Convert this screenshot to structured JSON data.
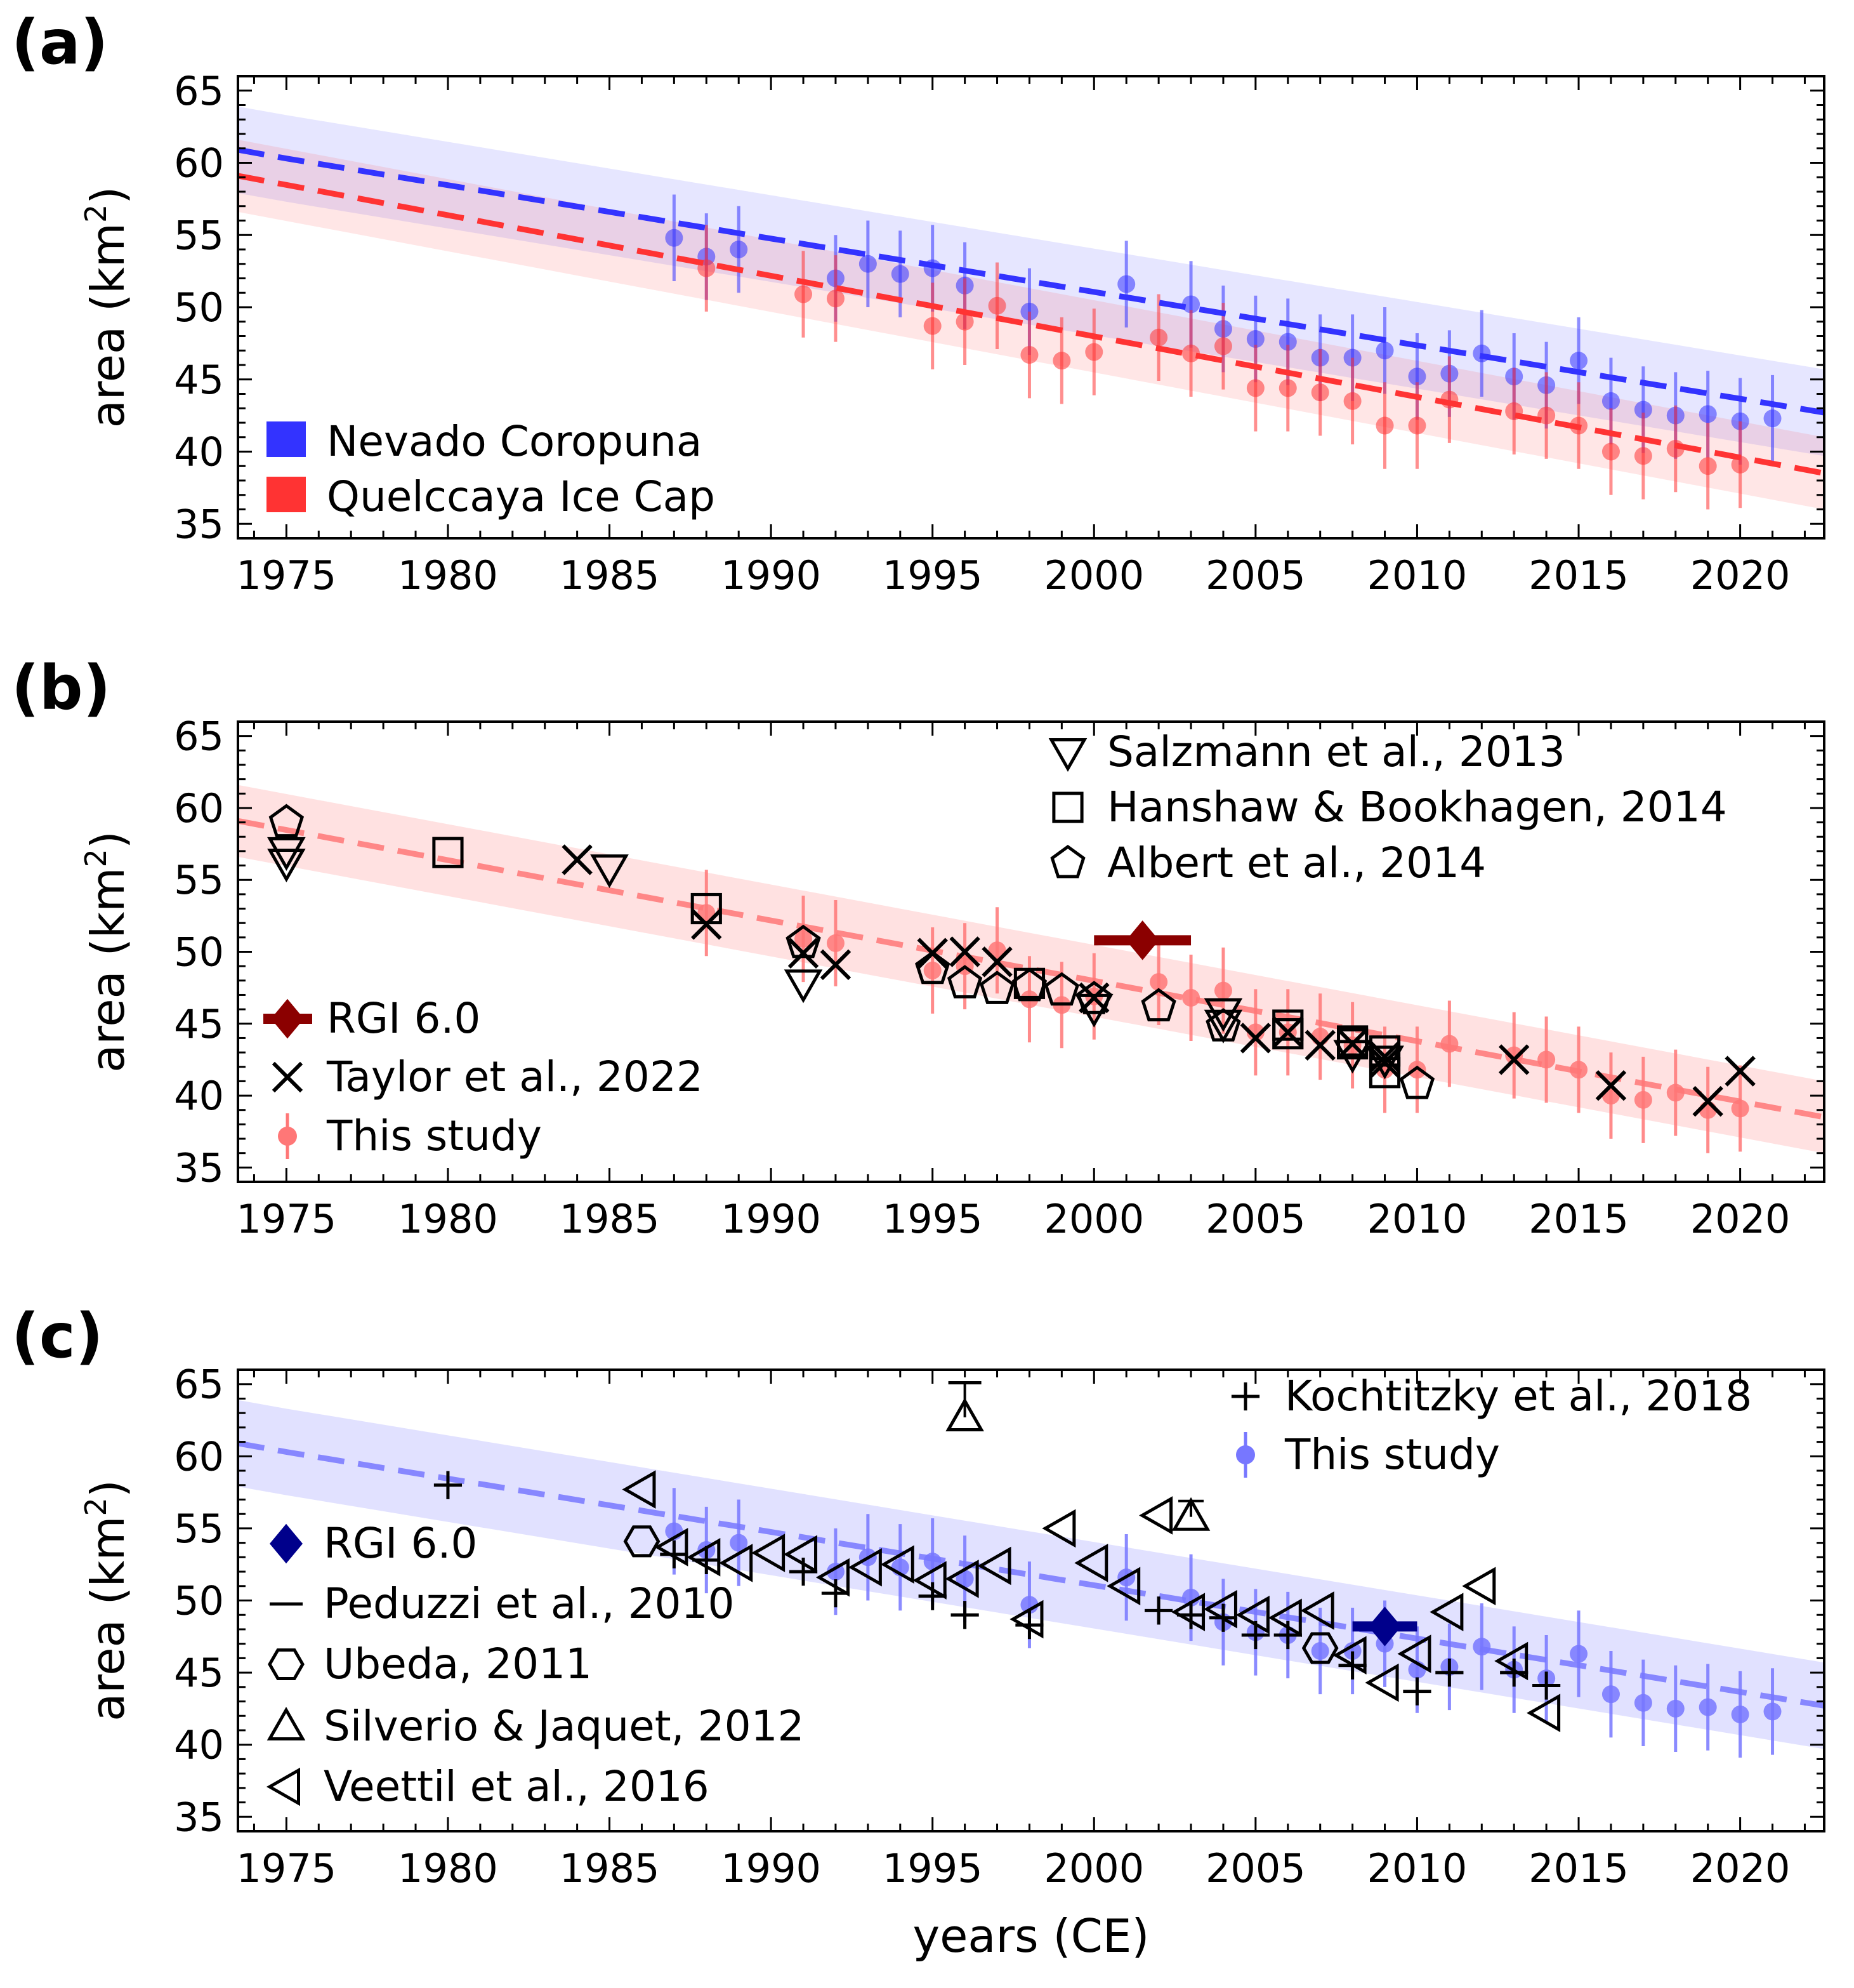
{
  "chart_data": [
    {
      "type": "scatter",
      "panel_label": "(a)",
      "ylabel": "area (km",
      "ylabel_sup": "2",
      "ylabel_close": ")",
      "xlim": [
        1973.5,
        2022.6
      ],
      "ylim": [
        34,
        66
      ],
      "xticks": [
        "1975",
        "1980",
        "1985",
        "1990",
        "1995",
        "2000",
        "2005",
        "2010",
        "2015",
        "2020"
      ],
      "yticks": [
        "35",
        "40",
        "45",
        "50",
        "55",
        "60",
        "65"
      ],
      "colors": {
        "blue": "#3333ff",
        "red": "#ff3333"
      },
      "legend": [
        "Nevado Coropuna",
        "Quelccaya Ice Cap"
      ],
      "series": [
        {
          "name": "Nevado Coropuna",
          "trend": {
            "x": [
              1973.5,
              1975,
              2022.6
            ],
            "y": [
              60.9,
              60.3,
              42.7
            ]
          },
          "band_halfwidth": 3,
          "x": [
            1987,
            1988,
            1989,
            1992,
            1993,
            1994,
            1995,
            1996,
            1998,
            2001,
            2003,
            2004,
            2005,
            2006,
            2007,
            2008,
            2009,
            2010,
            2011,
            2012,
            2013,
            2014,
            2015,
            2016,
            2017,
            2018,
            2019,
            2020,
            2021
          ],
          "y": [
            54.8,
            53.5,
            54,
            52,
            53,
            52.3,
            52.7,
            51.5,
            49.7,
            51.6,
            50.2,
            48.5,
            47.8,
            47.6,
            46.5,
            46.5,
            47,
            45.2,
            45.4,
            46.8,
            45.2,
            44.6,
            46.3,
            43.5,
            42.9,
            42.5,
            42.6,
            42.1,
            42.3
          ],
          "err": 3
        },
        {
          "name": "Quelccaya Ice Cap",
          "trend": {
            "x": [
              1973.5,
              2022.6
            ],
            "y": [
              59.1,
              38.5
            ]
          },
          "band_halfwidth": 2.5,
          "x": [
            1988,
            1991,
            1992,
            1995,
            1996,
            1997,
            1998,
            1999,
            2000,
            2002,
            2003,
            2004,
            2005,
            2006,
            2007,
            2008,
            2009,
            2010,
            2011,
            2013,
            2014,
            2015,
            2016,
            2017,
            2018,
            2019,
            2020
          ],
          "y": [
            52.7,
            50.9,
            50.6,
            48.7,
            49,
            50.1,
            46.7,
            46.3,
            46.9,
            47.9,
            46.8,
            47.3,
            44.4,
            44.4,
            44.1,
            43.5,
            41.8,
            41.8,
            43.6,
            42.8,
            42.5,
            41.8,
            40,
            39.7,
            40.2,
            39,
            39.1
          ],
          "err": 3
        }
      ]
    },
    {
      "type": "scatter",
      "panel_label": "(b)",
      "ylabel": "area (km",
      "ylabel_sup": "2",
      "ylabel_close": ")",
      "xlim": [
        1973.5,
        2022.6
      ],
      "ylim": [
        34,
        66
      ],
      "xticks": [
        "1975",
        "1980",
        "1985",
        "1990",
        "1995",
        "2000",
        "2005",
        "2010",
        "2015",
        "2020"
      ],
      "yticks": [
        "35",
        "40",
        "45",
        "50",
        "55",
        "60",
        "65"
      ],
      "colors": {
        "study": "#ff7777",
        "rgi": "#8b0000"
      },
      "legend_right": [
        "Salzmann et al., 2013",
        "Hanshaw & Bookhagen, 2014",
        "Albert et al., 2014"
      ],
      "legend_left": [
        "RGI 6.0",
        "Taylor et al., 2022",
        "This study"
      ],
      "series": [
        {
          "name": "This study",
          "trend": {
            "x": [
              1973.5,
              2022.6
            ],
            "y": [
              59.1,
              38.5
            ]
          },
          "band_halfwidth": 2.5,
          "x": [
            1988,
            1991,
            1992,
            1995,
            1996,
            1997,
            1998,
            1999,
            2000,
            2002,
            2003,
            2004,
            2005,
            2006,
            2007,
            2008,
            2009,
            2010,
            2011,
            2013,
            2014,
            2015,
            2016,
            2017,
            2018,
            2019,
            2020
          ],
          "y": [
            52.7,
            50.9,
            50.6,
            48.7,
            49,
            50.1,
            46.7,
            46.3,
            46.9,
            47.9,
            46.8,
            47.3,
            44.4,
            44.4,
            44.1,
            43.5,
            41.8,
            41.8,
            43.6,
            42.8,
            42.5,
            41.8,
            40,
            39.7,
            40.2,
            39,
            39.1
          ],
          "err": 3
        },
        {
          "name": "Salzmann et al., 2013",
          "marker": "triangle-down",
          "x": [
            1975,
            1975,
            1985,
            1991,
            2000,
            2004,
            2004,
            2008,
            2009
          ],
          "y": [
            57,
            56.2,
            55.8,
            47.8,
            46.1,
            45.8,
            45,
            42.9,
            42.5
          ]
        },
        {
          "name": "Hanshaw & Bookhagen, 2014",
          "marker": "square",
          "x": [
            1980,
            1988,
            1998,
            2006,
            2006,
            2008,
            2008,
            2009,
            2009
          ],
          "y": [
            56.9,
            53,
            47.8,
            44.9,
            44.3,
            43.8,
            43.6,
            43.1,
            41.6
          ]
        },
        {
          "name": "Albert et al., 2014",
          "marker": "pentagon",
          "x": [
            1975,
            1991,
            1995,
            1996,
            1997,
            1998,
            1999,
            2000,
            2002,
            2004,
            2010
          ],
          "y": [
            59,
            50.6,
            48.8,
            47.8,
            47.4,
            47.6,
            47.3,
            46.7,
            46.2,
            44.8,
            40.8
          ]
        },
        {
          "name": "Taylor et al., 2022",
          "marker": "x",
          "x": [
            1984,
            1988,
            1991,
            1992,
            1995,
            1996,
            1997,
            2000,
            2005,
            2006,
            2007,
            2008,
            2009,
            2009,
            2013,
            2016,
            2019,
            2020
          ],
          "y": [
            56.4,
            51.9,
            49.9,
            49.1,
            49.9,
            50,
            49.3,
            46.8,
            44,
            44.4,
            43.5,
            43.6,
            42.7,
            42.3,
            42.5,
            40.7,
            39.6,
            41.7
          ]
        },
        {
          "name": "RGI 6.0",
          "marker": "diamond",
          "x": [
            2001.5
          ],
          "y": [
            50.8
          ],
          "xerr": 1.5
        }
      ]
    },
    {
      "type": "scatter",
      "panel_label": "(c)",
      "ylabel": "area (km",
      "ylabel_sup": "2",
      "ylabel_close": ")",
      "xlabel": "years (CE)",
      "xlim": [
        1973.5,
        2022.6
      ],
      "ylim": [
        34,
        66
      ],
      "xticks": [
        "1975",
        "1980",
        "1985",
        "1990",
        "1995",
        "2000",
        "2005",
        "2010",
        "2015",
        "2020"
      ],
      "yticks": [
        "35",
        "40",
        "45",
        "50",
        "55",
        "60",
        "65"
      ],
      "colors": {
        "study": "#7777ff",
        "rgi": "#00008b"
      },
      "legend_right": [
        "Kochtitzky et al., 2018",
        "This study"
      ],
      "legend_left": [
        "RGI 6.0",
        "Peduzzi et al., 2010",
        "Ubeda, 2011",
        "Silverio & Jaquet, 2012",
        "Veettil et al., 2016"
      ],
      "series": [
        {
          "name": "This study",
          "trend": {
            "x": [
              1973.5,
              1975,
              2022.6
            ],
            "y": [
              60.9,
              60.3,
              42.7
            ]
          },
          "band_halfwidth": 3,
          "x": [
            1987,
            1988,
            1989,
            1992,
            1993,
            1994,
            1995,
            1996,
            1998,
            2001,
            2003,
            2004,
            2005,
            2006,
            2007,
            2008,
            2009,
            2010,
            2011,
            2012,
            2013,
            2014,
            2015,
            2016,
            2017,
            2018,
            2019,
            2020,
            2021
          ],
          "y": [
            54.8,
            53.5,
            54,
            52,
            53,
            52.3,
            52.7,
            51.5,
            49.7,
            51.6,
            50.2,
            48.5,
            47.8,
            47.6,
            46.5,
            46.5,
            47,
            45.2,
            45.4,
            46.8,
            45.2,
            44.6,
            46.3,
            43.5,
            42.9,
            42.5,
            42.6,
            42.1,
            42.3
          ],
          "err": 3
        },
        {
          "name": "Kochtitzky et al., 2018",
          "marker": "plus",
          "x": [
            1980,
            1987,
            1988,
            1991,
            1992,
            1995,
            1996,
            1998,
            2002,
            2003,
            2004,
            2005,
            2006,
            2008,
            2010,
            2011,
            2013,
            2014
          ],
          "y": [
            58,
            53.2,
            52.8,
            52,
            50.5,
            50.3,
            49,
            48.3,
            49.3,
            49,
            48.8,
            47.6,
            47.6,
            45.5,
            43.7,
            45,
            45,
            44.1
          ]
        },
        {
          "name": "Peduzzi et al., 2010",
          "marker": "hline",
          "x": [
            1996
          ],
          "y": [
            65.1
          ]
        },
        {
          "name": "Ubeda, 2011",
          "marker": "hexagon",
          "x": [
            1986,
            2007
          ],
          "y": [
            54.1,
            46.7
          ]
        },
        {
          "name": "Silverio & Jaquet, 2012",
          "marker": "triangle-up",
          "x": [
            1996,
            2003
          ],
          "y": [
            62.7,
            55.8
          ],
          "err_up": [
            2.4,
            1.1
          ]
        },
        {
          "name": "Veettil et al., 2016",
          "marker": "triangle-left",
          "x": [
            1986,
            1987,
            1988,
            1989,
            1990,
            1991,
            1992,
            1993,
            1994,
            1995,
            1996,
            1997,
            1998,
            1999,
            2000,
            2001,
            2002,
            2003,
            2004,
            2005,
            2006,
            2007,
            2008,
            2009,
            2010,
            2011,
            2012,
            2013,
            2014
          ],
          "y": [
            57.7,
            53.7,
            53,
            52.6,
            53.3,
            53.2,
            51.6,
            52.3,
            52.5,
            51.4,
            51.5,
            52.4,
            48.7,
            55,
            52.6,
            51,
            55.9,
            49.2,
            49.4,
            49,
            48.8,
            49.3,
            46.2,
            44.3,
            46.3,
            49.2,
            51,
            45.8,
            42.2
          ]
        },
        {
          "name": "RGI 6.0",
          "marker": "diamond",
          "x": [
            2009
          ],
          "y": [
            48.2
          ],
          "xerr": 1.0
        }
      ]
    }
  ]
}
